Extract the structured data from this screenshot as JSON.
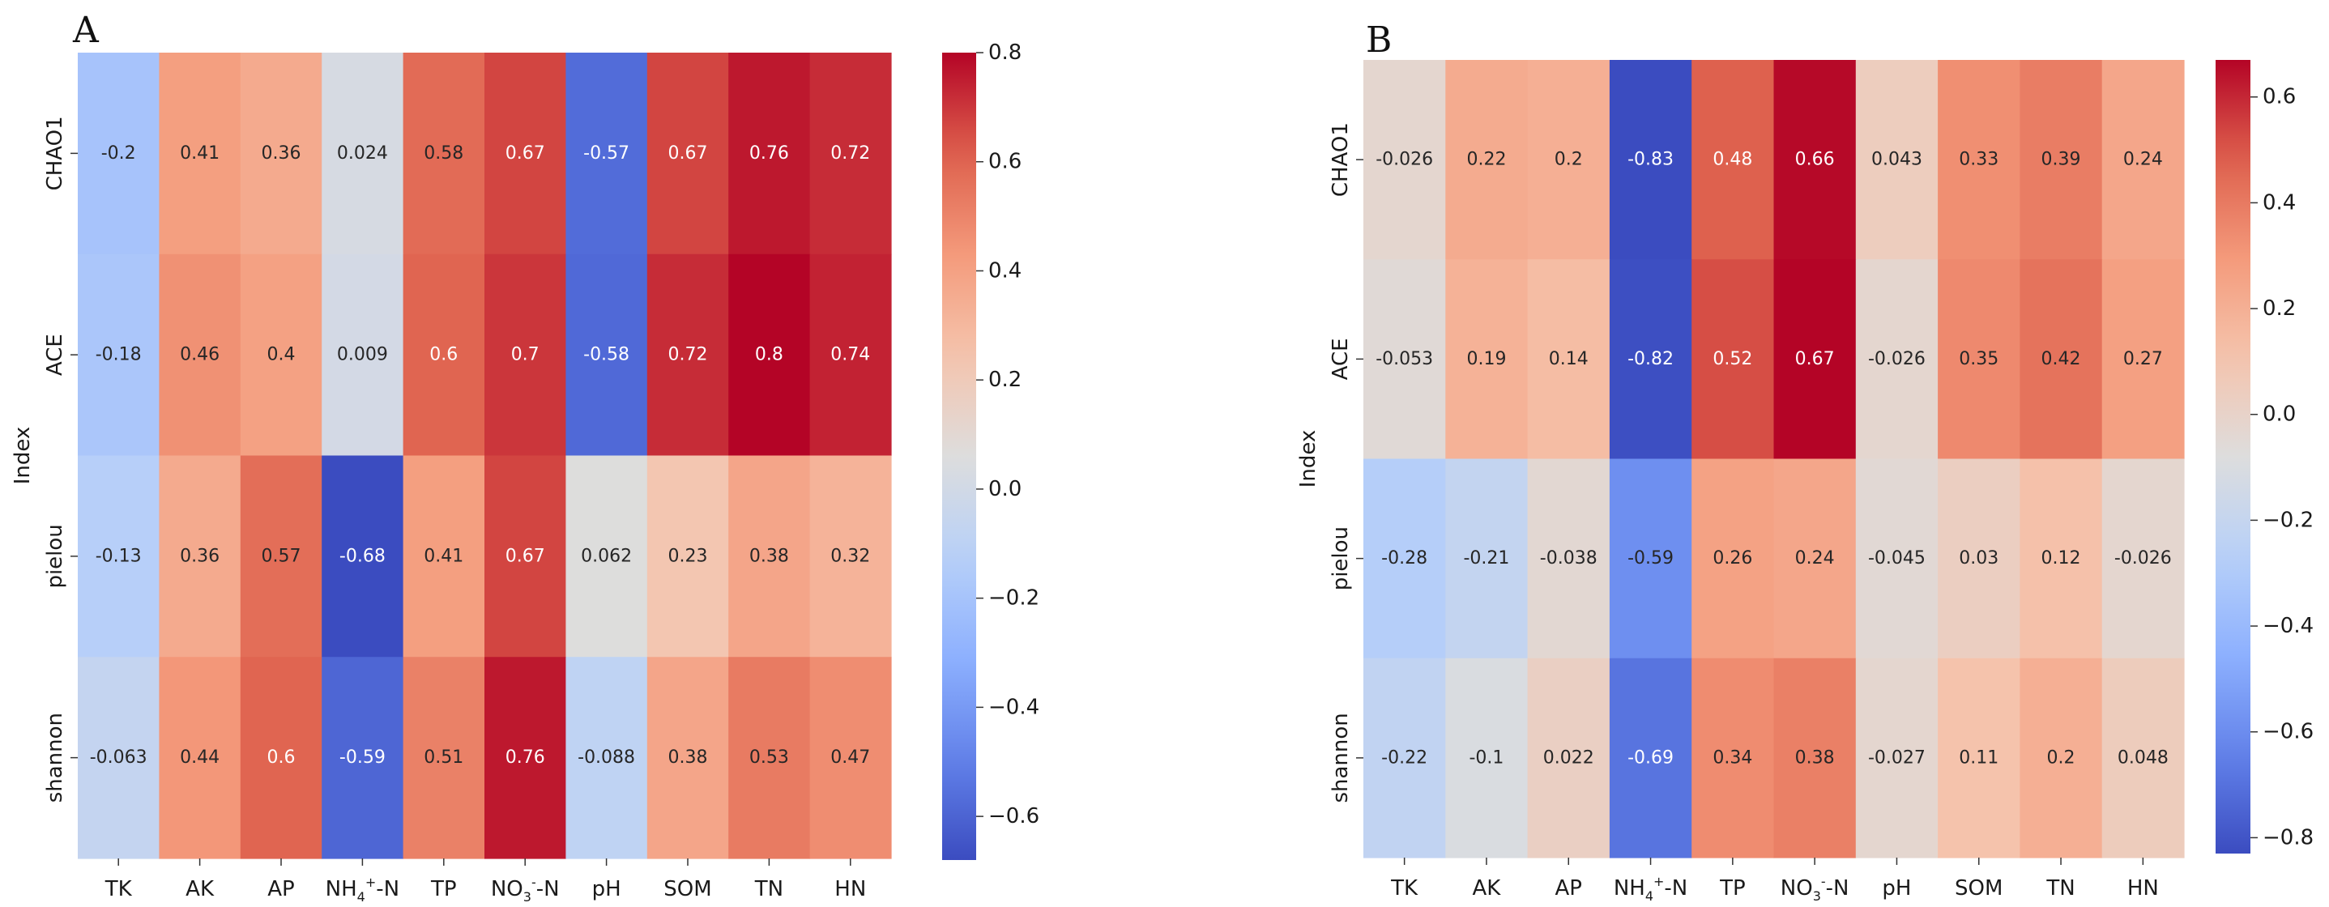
{
  "chart_data": [
    {
      "type": "heatmap",
      "panel_label": "A",
      "ylabel": "Index",
      "xlabel": "",
      "x_categories": [
        "TK",
        "AK",
        "AP",
        "NH4+-N",
        "TP",
        "NO3--N",
        "pH",
        "SOM",
        "TN",
        "HN"
      ],
      "y_categories": [
        "CHAO1",
        "ACE",
        "pielou",
        "shannon"
      ],
      "values": [
        [
          -0.2,
          0.41,
          0.36,
          0.024,
          0.58,
          0.67,
          -0.57,
          0.67,
          0.76,
          0.72
        ],
        [
          -0.18,
          0.46,
          0.4,
          0.009,
          0.6,
          0.7,
          -0.58,
          0.72,
          0.8,
          0.74
        ],
        [
          -0.13,
          0.36,
          0.57,
          -0.68,
          0.41,
          0.67,
          0.062,
          0.23,
          0.38,
          0.32
        ],
        [
          -0.063,
          0.44,
          0.6,
          -0.59,
          0.51,
          0.76,
          -0.088,
          0.38,
          0.53,
          0.47
        ]
      ],
      "value_labels": [
        [
          "-0.2",
          "0.41",
          "0.36",
          "0.024",
          "0.58",
          "0.67",
          "-0.57",
          "0.67",
          "0.76",
          "0.72"
        ],
        [
          "-0.18",
          "0.46",
          "0.4",
          "0.009",
          "0.6",
          "0.7",
          "-0.58",
          "0.72",
          "0.8",
          "0.74"
        ],
        [
          "-0.13",
          "0.36",
          "0.57",
          "-0.68",
          "0.41",
          "0.67",
          "0.062",
          "0.23",
          "0.38",
          "0.32"
        ],
        [
          "-0.063",
          "0.44",
          "0.6",
          "-0.59",
          "0.51",
          "0.76",
          "-0.088",
          "0.38",
          "0.53",
          "0.47"
        ]
      ],
      "colormap": "coolwarm",
      "color_range": [
        -0.68,
        0.8
      ],
      "colorbar_ticks": [
        0.8,
        0.6,
        0.4,
        0.2,
        0.0,
        -0.2,
        -0.4,
        -0.6
      ],
      "colorbar_tick_labels": [
        "0.8",
        "0.6",
        "0.4",
        "0.2",
        "0.0",
        "−0.2",
        "−0.4",
        "−0.6"
      ]
    },
    {
      "type": "heatmap",
      "panel_label": "B",
      "ylabel": "Index",
      "xlabel": "",
      "x_categories": [
        "TK",
        "AK",
        "AP",
        "NH4+-N",
        "TP",
        "NO3--N",
        "pH",
        "SOM",
        "TN",
        "HN"
      ],
      "y_categories": [
        "CHAO1",
        "ACE",
        "pielou",
        "shannon"
      ],
      "values": [
        [
          -0.026,
          0.22,
          0.2,
          -0.83,
          0.48,
          0.66,
          0.043,
          0.33,
          0.39,
          0.24
        ],
        [
          -0.053,
          0.19,
          0.14,
          -0.82,
          0.52,
          0.67,
          -0.026,
          0.35,
          0.42,
          0.27
        ],
        [
          -0.28,
          -0.21,
          -0.038,
          -0.59,
          0.26,
          0.24,
          -0.045,
          0.03,
          0.12,
          -0.026
        ],
        [
          -0.22,
          -0.1,
          0.022,
          -0.69,
          0.34,
          0.38,
          -0.027,
          0.11,
          0.2,
          0.048
        ]
      ],
      "value_labels": [
        [
          "-0.026",
          "0.22",
          "0.2",
          "-0.83",
          "0.48",
          "0.66",
          "0.043",
          "0.33",
          "0.39",
          "0.24"
        ],
        [
          "-0.053",
          "0.19",
          "0.14",
          "-0.82",
          "0.52",
          "0.67",
          "-0.026",
          "0.35",
          "0.42",
          "0.27"
        ],
        [
          "-0.28",
          "-0.21",
          "-0.038",
          "-0.59",
          "0.26",
          "0.24",
          "-0.045",
          "0.03",
          "0.12",
          "-0.026"
        ],
        [
          "-0.22",
          "-0.1",
          "0.022",
          "-0.69",
          "0.34",
          "0.38",
          "-0.027",
          "0.11",
          "0.2",
          "0.048"
        ]
      ],
      "colormap": "coolwarm",
      "color_range": [
        -0.83,
        0.67
      ],
      "colorbar_ticks": [
        0.6,
        0.4,
        0.2,
        0.0,
        -0.2,
        -0.4,
        -0.6,
        -0.8
      ],
      "colorbar_tick_labels": [
        "0.6",
        "0.4",
        "0.2",
        "0.0",
        "−0.2",
        "−0.4",
        "−0.6",
        "−0.8"
      ]
    }
  ]
}
